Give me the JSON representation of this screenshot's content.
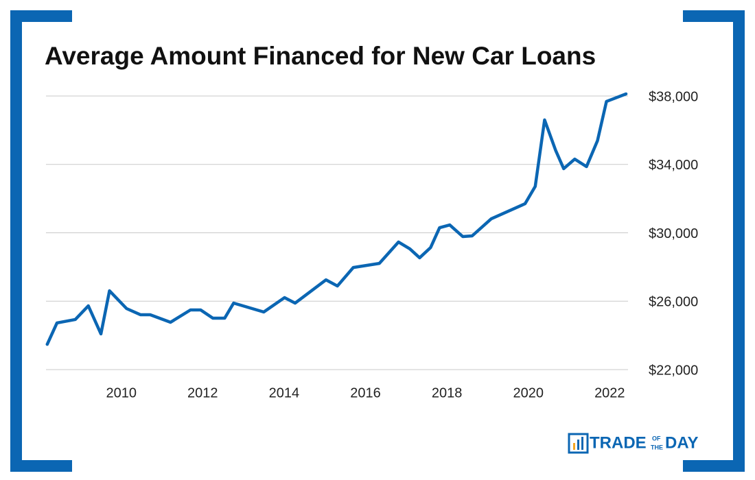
{
  "chart_data": {
    "type": "line",
    "title": "Average Amount Financed for New Car Loans",
    "x": [
      2008.18,
      2008.42,
      2008.87,
      2009.19,
      2009.5,
      2009.71,
      2010.13,
      2010.47,
      2010.71,
      2011.21,
      2011.7,
      2011.95,
      2012.25,
      2012.54,
      2012.76,
      2013.5,
      2014.01,
      2014.27,
      2015.03,
      2015.31,
      2015.7,
      2016.34,
      2016.81,
      2017.09,
      2017.33,
      2017.6,
      2017.82,
      2018.07,
      2018.39,
      2018.62,
      2019.09,
      2019.92,
      2020.17,
      2020.4,
      2020.67,
      2020.87,
      2021.14,
      2021.43,
      2021.7,
      2021.92,
      2022.4
    ],
    "values": [
      23480,
      24730,
      24930,
      25730,
      24090,
      26610,
      25570,
      25210,
      25210,
      24770,
      25490,
      25490,
      25010,
      25010,
      25890,
      25370,
      26210,
      25890,
      27250,
      26890,
      27970,
      28210,
      29460,
      29060,
      28540,
      29140,
      30300,
      30460,
      29780,
      29820,
      30820,
      31700,
      32710,
      36600,
      34830,
      33750,
      34310,
      33870,
      35390,
      37680,
      38120
    ],
    "color": "#0b66b3",
    "xlim": [
      2008.15,
      2022.45
    ],
    "xticks": [
      2010,
      2012,
      2014,
      2016,
      2018,
      2020,
      2022
    ],
    "ylim": [
      21200,
      38400
    ],
    "yticks": [
      {
        "value": 22000,
        "label": "$22,000"
      },
      {
        "value": 26000,
        "label": "$26,000"
      },
      {
        "value": 30000,
        "label": "$30,000"
      },
      {
        "value": 34000,
        "label": "$34,000"
      },
      {
        "value": 38000,
        "label": "$38,000"
      }
    ],
    "grid": true
  },
  "logo": {
    "main": "TRADE",
    "small_top": "OF",
    "small_bottom": "THE",
    "end": "DAY"
  }
}
